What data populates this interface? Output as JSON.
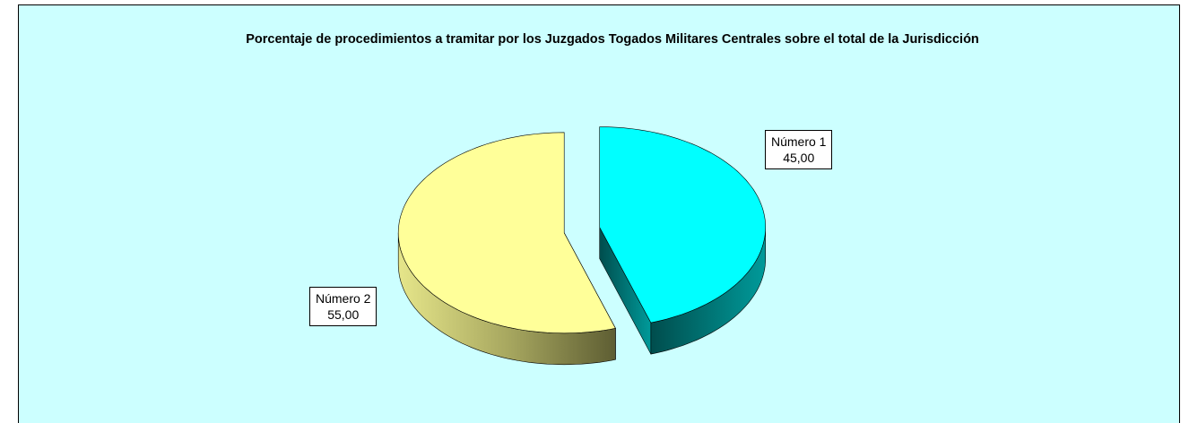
{
  "chart_data": {
    "type": "pie3d",
    "title": "Porcentaje de procedimientos a tramitar por los Juzgados Togados Militares Centrales sobre el total de la Jurisdicción",
    "categories": [
      "Número 1",
      "Número 2"
    ],
    "values": [
      45,
      55
    ],
    "value_labels": [
      "45,00",
      "55,00"
    ],
    "colors": [
      "#00ffff",
      "#ffff99"
    ]
  }
}
